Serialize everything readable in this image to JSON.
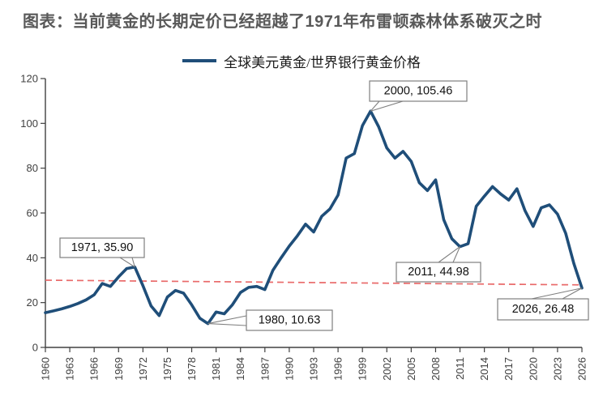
{
  "page": {
    "title": "图表：当前黄金的长期定价已经超越了1971年布雷顿森林体系破灭之时"
  },
  "chart_data": {
    "type": "line",
    "legend_position": "top",
    "grid": false,
    "xlim": [
      1960,
      2026
    ],
    "ylim": [
      0,
      120
    ],
    "y_ticks": [
      0,
      20,
      40,
      60,
      80,
      100,
      120
    ],
    "x_tick_labels": [
      "1960",
      "1963",
      "1966",
      "1969",
      "1972",
      "1975",
      "1978",
      "1981",
      "1984",
      "1987",
      "1990",
      "1993",
      "1996",
      "1999",
      "2002",
      "2005",
      "2008",
      "2011",
      "2014",
      "2017",
      "2020",
      "2023",
      "2026"
    ],
    "x": [
      1960,
      1961,
      1962,
      1963,
      1964,
      1965,
      1966,
      1967,
      1968,
      1969,
      1970,
      1971,
      1972,
      1973,
      1974,
      1975,
      1976,
      1977,
      1978,
      1979,
      1980,
      1981,
      1982,
      1983,
      1984,
      1985,
      1986,
      1987,
      1988,
      1989,
      1990,
      1991,
      1992,
      1993,
      1994,
      1995,
      1996,
      1997,
      1998,
      1999,
      2000,
      2001,
      2002,
      2003,
      2004,
      2005,
      2006,
      2007,
      2008,
      2009,
      2010,
      2011,
      2012,
      2013,
      2014,
      2015,
      2016,
      2017,
      2018,
      2019,
      2020,
      2021,
      2022,
      2023,
      2024,
      2025,
      2026
    ],
    "series": [
      {
        "name": "全球美元黄金/世界银行黄金价格",
        "color": "#1F4E79",
        "values": [
          15.5,
          16.3,
          17.2,
          18.3,
          19.6,
          21.2,
          23.5,
          28.5,
          27.2,
          31.5,
          35.2,
          35.9,
          27.5,
          18.5,
          14.2,
          22.5,
          25.4,
          24.2,
          19.0,
          13.0,
          10.63,
          15.8,
          15.0,
          19.0,
          24.5,
          26.8,
          27.2,
          25.8,
          34.5,
          40.0,
          45.2,
          49.8,
          55.0,
          51.5,
          58.5,
          61.8,
          68.0,
          84.5,
          86.5,
          99.0,
          105.46,
          98.5,
          89.0,
          84.5,
          87.5,
          83.0,
          73.5,
          70.0,
          74.8,
          57.0,
          48.5,
          44.98,
          46.3,
          63.0,
          67.5,
          71.8,
          68.5,
          65.8,
          70.8,
          61.0,
          54.0,
          62.3,
          63.6,
          59.5,
          51.0,
          37.5,
          26.48
        ]
      }
    ],
    "trendline": {
      "style": "dashed",
      "color": "#E96A6A",
      "points": [
        [
          1960,
          30.0
        ],
        [
          2026,
          27.9
        ]
      ]
    },
    "annotations": [
      {
        "label": "1971, 35.90",
        "x": 1971,
        "y": 35.9
      },
      {
        "label": "2000, 105.46",
        "x": 2000,
        "y": 105.46
      },
      {
        "label": "2011, 44.98",
        "x": 2011,
        "y": 44.98
      },
      {
        "label": "1980, 10.63",
        "x": 1980,
        "y": 10.63
      },
      {
        "label": "2026, 26.48",
        "x": 2026,
        "y": 26.48
      }
    ],
    "colors": {
      "line": "#1F4E79",
      "trend": "#E96A6A",
      "axis": "#404040",
      "tick_label": "#404040",
      "title": "#595959",
      "callout_border": "#7f7f7f",
      "callout_text": "#111111"
    }
  }
}
